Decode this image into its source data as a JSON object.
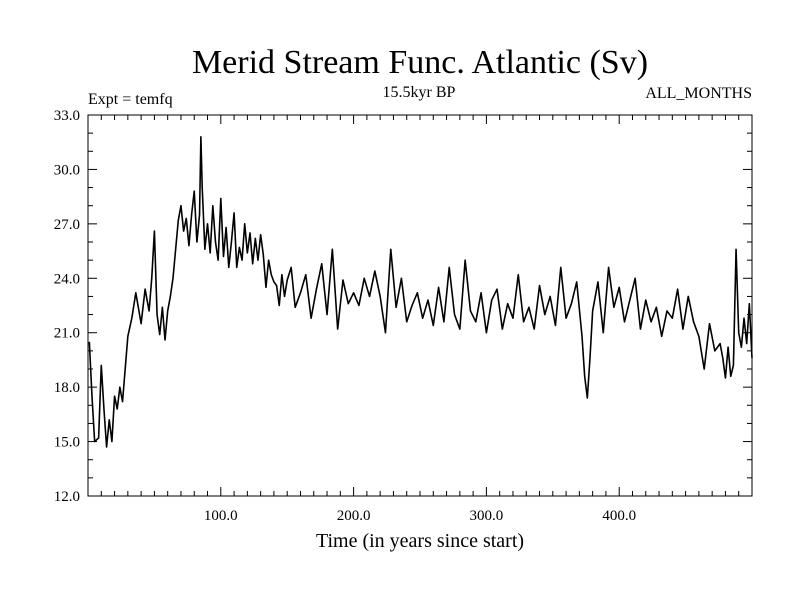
{
  "chart_data": {
    "type": "line",
    "title": "Merid Stream Func. Atlantic (Sv)",
    "subtitle": "15.5kyr BP",
    "left_label": "Expt = temfq",
    "right_label": "ALL_MONTHS",
    "xlabel": "Time (in years since start)",
    "ylabel": "",
    "xlim": [
      0,
      500
    ],
    "ylim": [
      12,
      33
    ],
    "x_ticks": [
      100,
      200,
      300,
      400
    ],
    "x_tick_labels": [
      "100.0",
      "200.0",
      "300.0",
      "400.0"
    ],
    "y_ticks": [
      12,
      15,
      18,
      21,
      24,
      27,
      30,
      33
    ],
    "y_tick_labels": [
      "12.0",
      "15.0",
      "18.0",
      "21.0",
      "24.0",
      "27.0",
      "30.0",
      "33.0"
    ],
    "series": [
      {
        "name": "Merid Stream Func. Atlantic",
        "color": "#000000",
        "x": [
          1,
          3,
          5,
          8,
          10,
          12,
          14,
          16,
          18,
          20,
          22,
          24,
          26,
          28,
          30,
          33,
          36,
          40,
          43,
          46,
          48,
          50,
          52,
          54,
          56,
          58,
          60,
          62,
          64,
          66,
          68,
          70,
          72,
          74,
          76,
          78,
          80,
          82,
          84,
          85,
          86,
          88,
          90,
          92,
          94,
          96,
          98,
          100,
          102,
          104,
          106,
          108,
          110,
          112,
          114,
          116,
          118,
          120,
          122,
          124,
          126,
          128,
          130,
          132,
          134,
          136,
          138,
          140,
          142,
          144,
          146,
          148,
          150,
          153,
          156,
          160,
          164,
          168,
          172,
          176,
          180,
          184,
          188,
          192,
          196,
          200,
          204,
          208,
          212,
          216,
          220,
          224,
          228,
          232,
          236,
          240,
          244,
          248,
          252,
          256,
          260,
          264,
          268,
          272,
          276,
          280,
          284,
          288,
          292,
          296,
          300,
          304,
          308,
          312,
          316,
          320,
          324,
          328,
          332,
          336,
          340,
          344,
          348,
          352,
          356,
          360,
          364,
          368,
          372,
          374,
          376,
          378,
          380,
          384,
          388,
          392,
          396,
          400,
          404,
          408,
          412,
          416,
          420,
          424,
          428,
          432,
          436,
          440,
          444,
          448,
          452,
          456,
          460,
          464,
          468,
          472,
          476,
          478,
          480,
          482,
          484,
          486,
          488,
          490,
          492,
          494,
          496,
          498,
          500
        ],
        "values": [
          20.5,
          17.5,
          15.0,
          15.2,
          19.2,
          16.8,
          14.7,
          16.2,
          15.0,
          17.5,
          16.8,
          18.0,
          17.2,
          19.0,
          20.8,
          21.8,
          23.2,
          21.5,
          23.4,
          22.2,
          24.0,
          26.6,
          22.0,
          20.9,
          22.4,
          20.6,
          22.2,
          23.0,
          24.0,
          25.6,
          27.2,
          28.0,
          26.6,
          27.3,
          25.8,
          27.5,
          28.8,
          26.0,
          27.5,
          31.8,
          29.0,
          25.6,
          27.0,
          25.4,
          28.0,
          26.0,
          25.0,
          28.4,
          25.2,
          26.8,
          24.6,
          26.0,
          27.6,
          24.6,
          25.7,
          25.0,
          27.0,
          25.4,
          26.5,
          24.8,
          26.2,
          25.0,
          26.4,
          25.3,
          23.5,
          25.0,
          24.2,
          23.8,
          23.6,
          22.5,
          24.2,
          23.0,
          23.9,
          24.6,
          22.4,
          23.2,
          24.2,
          21.8,
          23.4,
          24.8,
          22.0,
          25.6,
          21.2,
          23.9,
          22.6,
          23.2,
          22.5,
          24.0,
          23.0,
          24.4,
          23.0,
          21.0,
          25.6,
          22.4,
          24.0,
          21.6,
          22.5,
          23.2,
          21.8,
          22.8,
          21.4,
          23.5,
          21.6,
          24.6,
          22.0,
          21.2,
          25.0,
          22.2,
          21.6,
          23.2,
          21.0,
          22.8,
          23.4,
          21.2,
          22.6,
          21.8,
          24.2,
          21.6,
          22.4,
          21.2,
          23.6,
          22.0,
          23.0,
          21.4,
          24.6,
          21.8,
          22.6,
          23.8,
          20.8,
          18.6,
          17.4,
          19.6,
          22.2,
          23.8,
          21.0,
          24.6,
          22.4,
          23.5,
          21.6,
          22.8,
          24.0,
          21.2,
          22.8,
          21.6,
          22.4,
          20.8,
          22.2,
          21.8,
          23.4,
          21.2,
          23.0,
          21.6,
          20.8,
          19.0,
          21.5,
          20.0,
          20.4,
          19.6,
          18.5,
          20.2,
          18.6,
          19.2,
          25.6,
          21.0,
          20.2,
          21.8,
          20.4,
          22.6,
          19.6
        ]
      }
    ]
  }
}
